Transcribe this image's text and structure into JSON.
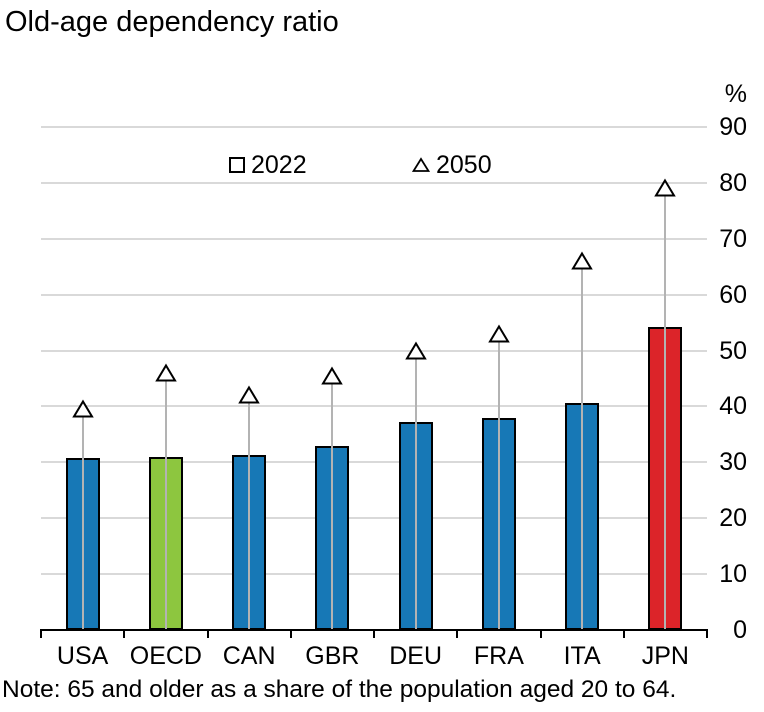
{
  "chart_data": {
    "type": "bar",
    "title": "Old-age dependency ratio",
    "note": "Note: 65 and older as a share of the population aged 20 to 64.",
    "unit_label": "%",
    "categories": [
      "USA",
      "OECD",
      "CAN",
      "GBR",
      "DEU",
      "FRA",
      "ITA",
      "JPN"
    ],
    "series": [
      {
        "name": "2022",
        "marker": "bar",
        "values": [
          30.7,
          31.0,
          31.4,
          33.0,
          37.3,
          38.0,
          40.7,
          54.3
        ]
      },
      {
        "name": "2050",
        "marker": "triangle",
        "values": [
          39.5,
          46.0,
          42.0,
          45.5,
          50.0,
          53.0,
          66.0,
          79.0
        ]
      }
    ],
    "bar_colors": [
      "#1778b6",
      "#8dc63f",
      "#1778b6",
      "#1778b6",
      "#1778b6",
      "#1778b6",
      "#1778b6",
      "#dc2429"
    ],
    "ylim": [
      0,
      90
    ],
    "yticks": [
      0,
      10,
      20,
      30,
      40,
      50,
      60,
      70,
      80,
      90
    ],
    "grid": true,
    "legend_position": "top-center-inside",
    "legend": [
      {
        "label": "2022",
        "marker": "square",
        "color": "#1778b6"
      },
      {
        "label": "2050",
        "marker": "triangle",
        "color": "#ffffff"
      }
    ],
    "colors": {
      "bar_blue": "#1778b6",
      "bar_green": "#8dc63f",
      "bar_red": "#dc2429",
      "gridline": "#d9d9d9",
      "stem": "#b3b3b3",
      "axis": "#000000"
    }
  }
}
